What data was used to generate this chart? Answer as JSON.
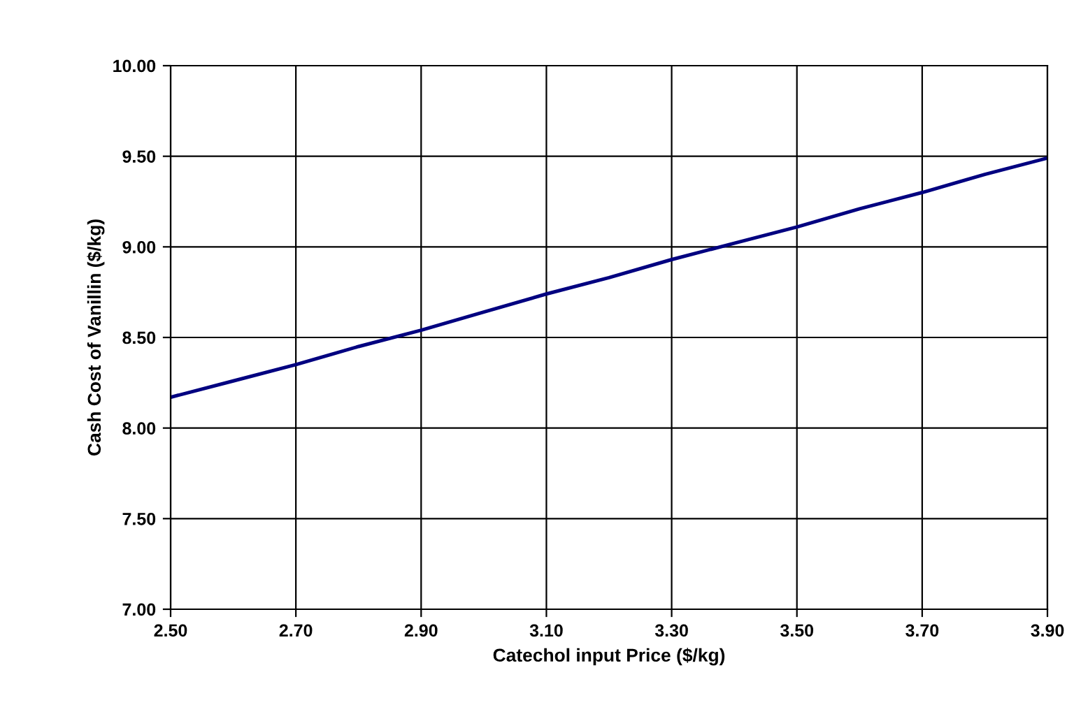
{
  "chart_data": {
    "type": "line",
    "xlabel": "Catechol input Price ($/kg)",
    "ylabel": "Cash Cost of Vanillin ($/kg)",
    "x": [
      2.5,
      2.6,
      2.7,
      2.8,
      2.9,
      3.0,
      3.1,
      3.2,
      3.3,
      3.4,
      3.5,
      3.6,
      3.7,
      3.8,
      3.9
    ],
    "series": [
      {
        "color": "#000080",
        "values": [
          8.17,
          8.26,
          8.35,
          8.45,
          8.54,
          8.64,
          8.74,
          8.83,
          8.93,
          9.02,
          9.11,
          9.21,
          9.3,
          9.4,
          9.49
        ]
      }
    ],
    "xlim": [
      2.5,
      3.9
    ],
    "xticks": [
      {
        "value": 2.5,
        "label": "2.50"
      },
      {
        "value": 2.7,
        "label": "2.70"
      },
      {
        "value": 2.9,
        "label": "2.90"
      },
      {
        "value": 3.1,
        "label": "3.10"
      },
      {
        "value": 3.3,
        "label": "3.30"
      },
      {
        "value": 3.5,
        "label": "3.50"
      },
      {
        "value": 3.7,
        "label": "3.70"
      },
      {
        "value": 3.9,
        "label": "3.90"
      }
    ],
    "ylim": [
      7.0,
      10.0
    ],
    "yticks": [
      {
        "value": 7.0,
        "label": "7.00"
      },
      {
        "value": 7.5,
        "label": "7.50"
      },
      {
        "value": 8.0,
        "label": "8.00"
      },
      {
        "value": 8.5,
        "label": "8.50"
      },
      {
        "value": 9.0,
        "label": "9.00"
      },
      {
        "value": 9.5,
        "label": "9.50"
      },
      {
        "value": 10.0,
        "label": "10.00"
      }
    ],
    "grid": true,
    "legend": false,
    "marker": "none",
    "line_style": "solid"
  }
}
